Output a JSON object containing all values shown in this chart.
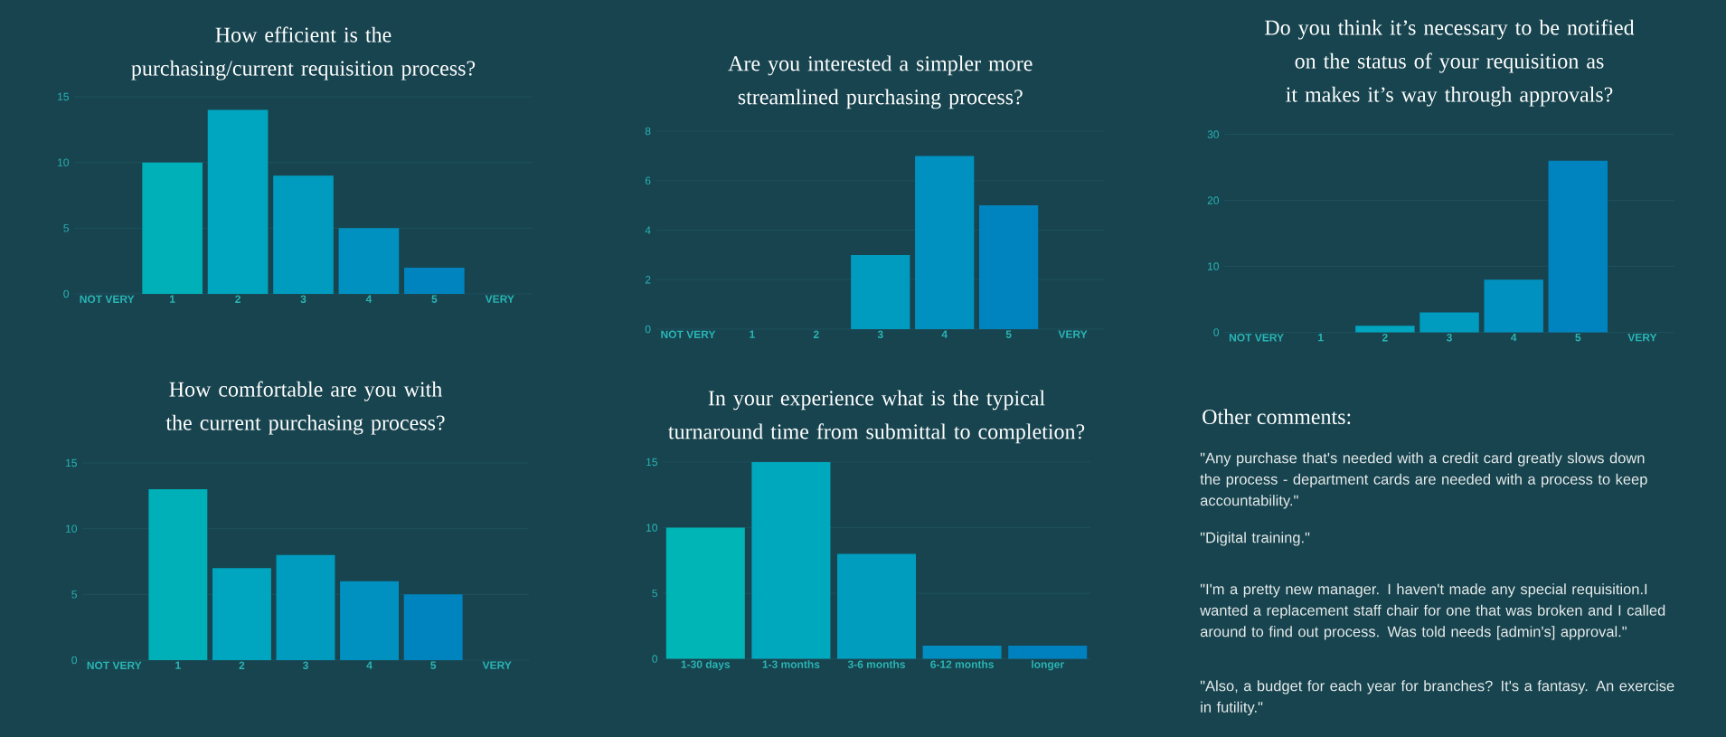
{
  "chart_data": [
    {
      "type": "bar",
      "title": "How efficient is the purchasing/current requisition process?",
      "categories": [
        "NOT VERY",
        "1",
        "2",
        "3",
        "4",
        "5",
        "VERY"
      ],
      "values": [
        null,
        10,
        14,
        9,
        5,
        2,
        null
      ],
      "colors": [
        "#00b0b9",
        "#00b0b9",
        "#00a5bf",
        "#009cbf",
        "#0091c0",
        "#0084bf",
        "#0084bf"
      ],
      "ylim": [
        0,
        15
      ],
      "yticks": [
        0,
        5,
        10,
        15
      ],
      "grid": "y"
    },
    {
      "type": "bar",
      "title": "Are you interested a simpler more streamlined purchasing process?",
      "categories": [
        "NOT VERY",
        "1",
        "2",
        "3",
        "4",
        "5",
        "VERY"
      ],
      "values": [
        null,
        0,
        0,
        3,
        7,
        5,
        null
      ],
      "colors": [
        "#00b0b9",
        "#00b0b9",
        "#00a5bf",
        "#009cbf",
        "#0091c0",
        "#0084bf",
        "#0084bf"
      ],
      "ylim": [
        0,
        8
      ],
      "yticks": [
        0,
        2,
        4,
        6,
        8
      ],
      "grid": "y"
    },
    {
      "type": "bar",
      "title": "Do you think it’s necessary to be notified on the status of your requisition as it makes it’s way through approvals?",
      "categories": [
        "NOT VERY",
        "1",
        "2",
        "3",
        "4",
        "5",
        "VERY"
      ],
      "values": [
        null,
        0,
        1,
        3,
        8,
        26,
        null
      ],
      "colors": [
        "#00b0b9",
        "#00b0b9",
        "#00a5bf",
        "#009cbf",
        "#0091c0",
        "#0084bf",
        "#0084bf"
      ],
      "ylim": [
        0,
        30
      ],
      "yticks": [
        0,
        10,
        20,
        30
      ],
      "grid": "y"
    },
    {
      "type": "bar",
      "title": "How comfortable are you with the current purchasing process?",
      "categories": [
        "NOT VERY",
        "1",
        "2",
        "3",
        "4",
        "5",
        "VERY"
      ],
      "values": [
        null,
        13,
        7,
        8,
        6,
        5,
        null
      ],
      "colors": [
        "#00b0b9",
        "#00b0b9",
        "#00a5bf",
        "#009cbf",
        "#0091c0",
        "#0084bf",
        "#0084bf"
      ],
      "ylim": [
        0,
        15
      ],
      "yticks": [
        0,
        5,
        10,
        15
      ],
      "grid": "y"
    },
    {
      "type": "bar",
      "title": "In your experience what is the typical turnaround time from submittal to completion?",
      "categories": [
        "1-30 days",
        "1-3 months",
        "3-6 months",
        "6-12 months",
        "longer"
      ],
      "values": [
        10,
        15,
        8,
        1,
        1
      ],
      "colors": [
        "#00b5b5",
        "#00a8be",
        "#009dbe",
        "#008ec0",
        "#0081bf"
      ],
      "ylim": [
        0,
        15
      ],
      "yticks": [
        0,
        5,
        10,
        15
      ],
      "grid": "y"
    },
    {
      "type": "other",
      "title": "Other comments:",
      "annotations": [
        "\"Any purchase that's needed with a credit card greatly slows down the process - department cards are needed with a process to keep accountability.\"",
        "\"Digital training.\"",
        "\"I'm a pretty new manager. I haven't made any special requisition.I wanted a replacement staff chair for one that was broken and I called around to find out process. Was told needs [admin's] approval.\"",
        "\"Also, a budget for each year for branches? It's a fantasy. An exercise in futility.\""
      ]
    }
  ]
}
